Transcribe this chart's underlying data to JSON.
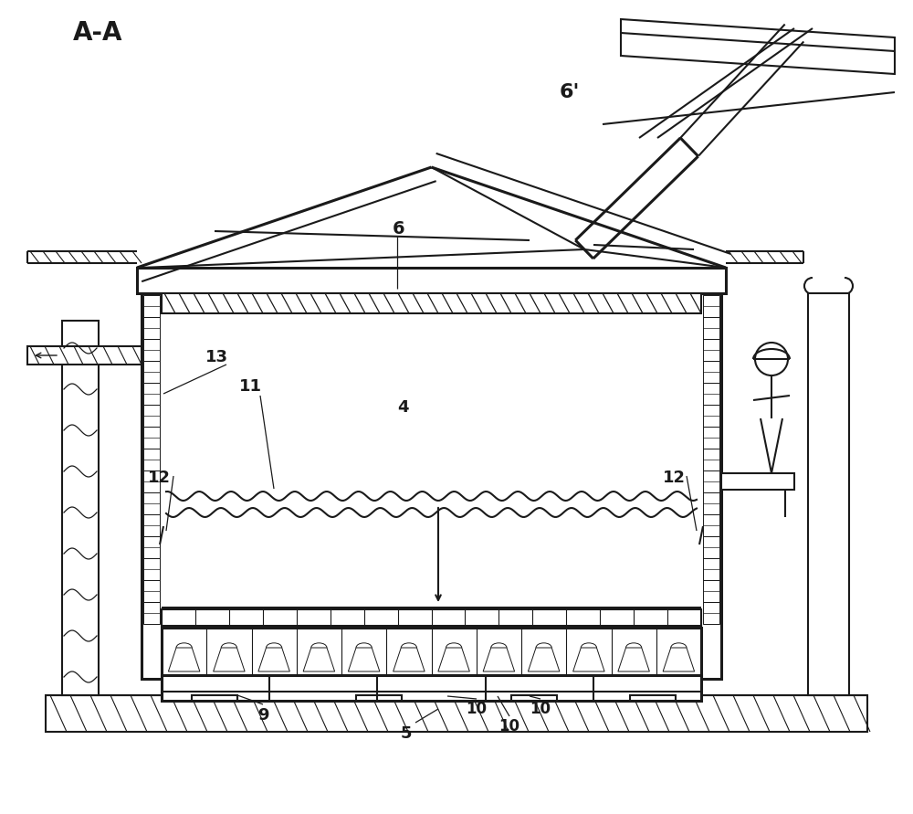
{
  "bg_color": "#ffffff",
  "lc": "#1a1a1a",
  "lw": 1.5,
  "lwt": 2.2
}
